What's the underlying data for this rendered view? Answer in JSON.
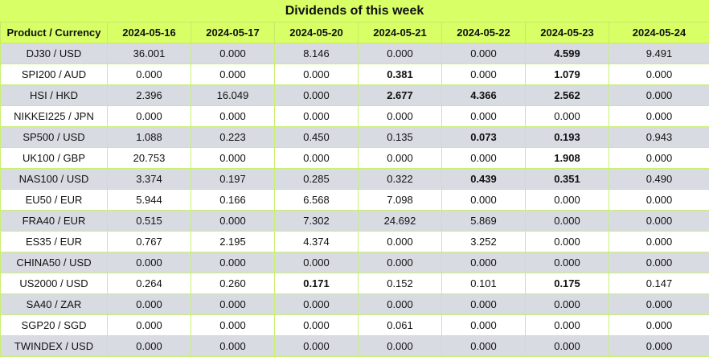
{
  "title": "Dividends of this week",
  "header": {
    "product": "Product / Currency",
    "dates": [
      "2024-05-16",
      "2024-05-17",
      "2024-05-20",
      "2024-05-21",
      "2024-05-22",
      "2024-05-23",
      "2024-05-24"
    ]
  },
  "rows": [
    {
      "product": "DJ30 / USD",
      "values": [
        "36.001",
        "0.000",
        "8.146",
        "0.000",
        "0.000",
        "4.599",
        "9.491"
      ],
      "bold": [
        false,
        false,
        false,
        false,
        false,
        true,
        false
      ]
    },
    {
      "product": "SPI200 / AUD",
      "values": [
        "0.000",
        "0.000",
        "0.000",
        "0.381",
        "0.000",
        "1.079",
        "0.000"
      ],
      "bold": [
        false,
        false,
        false,
        true,
        false,
        true,
        false
      ]
    },
    {
      "product": "HSI / HKD",
      "values": [
        "2.396",
        "16.049",
        "0.000",
        "2.677",
        "4.366",
        "2.562",
        "0.000"
      ],
      "bold": [
        false,
        false,
        false,
        true,
        true,
        true,
        false
      ]
    },
    {
      "product": "NIKKEI225 / JPN",
      "values": [
        "0.000",
        "0.000",
        "0.000",
        "0.000",
        "0.000",
        "0.000",
        "0.000"
      ],
      "bold": [
        false,
        false,
        false,
        false,
        false,
        false,
        false
      ]
    },
    {
      "product": "SP500 / USD",
      "values": [
        "1.088",
        "0.223",
        "0.450",
        "0.135",
        "0.073",
        "0.193",
        "0.943"
      ],
      "bold": [
        false,
        false,
        false,
        false,
        true,
        true,
        false
      ]
    },
    {
      "product": "UK100 / GBP",
      "values": [
        "20.753",
        "0.000",
        "0.000",
        "0.000",
        "0.000",
        "1.908",
        "0.000"
      ],
      "bold": [
        false,
        false,
        false,
        false,
        false,
        true,
        false
      ]
    },
    {
      "product": "NAS100 / USD",
      "values": [
        "3.374",
        "0.197",
        "0.285",
        "0.322",
        "0.439",
        "0.351",
        "0.490"
      ],
      "bold": [
        false,
        false,
        false,
        false,
        true,
        true,
        false
      ]
    },
    {
      "product": "EU50 / EUR",
      "values": [
        "5.944",
        "0.166",
        "6.568",
        "7.098",
        "0.000",
        "0.000",
        "0.000"
      ],
      "bold": [
        false,
        false,
        false,
        false,
        false,
        false,
        false
      ]
    },
    {
      "product": "FRA40 / EUR",
      "values": [
        "0.515",
        "0.000",
        "7.302",
        "24.692",
        "5.869",
        "0.000",
        "0.000"
      ],
      "bold": [
        false,
        false,
        false,
        false,
        false,
        false,
        false
      ]
    },
    {
      "product": "ES35 / EUR",
      "values": [
        "0.767",
        "2.195",
        "4.374",
        "0.000",
        "3.252",
        "0.000",
        "0.000"
      ],
      "bold": [
        false,
        false,
        false,
        false,
        false,
        false,
        false
      ]
    },
    {
      "product": "CHINA50 / USD",
      "values": [
        "0.000",
        "0.000",
        "0.000",
        "0.000",
        "0.000",
        "0.000",
        "0.000"
      ],
      "bold": [
        false,
        false,
        false,
        false,
        false,
        false,
        false
      ]
    },
    {
      "product": "US2000 / USD",
      "values": [
        "0.264",
        "0.260",
        "0.171",
        "0.152",
        "0.101",
        "0.175",
        "0.147"
      ],
      "bold": [
        false,
        false,
        true,
        false,
        false,
        true,
        false
      ]
    },
    {
      "product": "SA40 / ZAR",
      "values": [
        "0.000",
        "0.000",
        "0.000",
        "0.000",
        "0.000",
        "0.000",
        "0.000"
      ],
      "bold": [
        false,
        false,
        false,
        false,
        false,
        false,
        false
      ]
    },
    {
      "product": "SGP20 / SGD",
      "values": [
        "0.000",
        "0.000",
        "0.000",
        "0.061",
        "0.000",
        "0.000",
        "0.000"
      ],
      "bold": [
        false,
        false,
        false,
        false,
        false,
        false,
        false
      ]
    },
    {
      "product": "TWINDEX / USD",
      "values": [
        "0.000",
        "0.000",
        "0.000",
        "0.000",
        "0.000",
        "0.000",
        "0.000"
      ],
      "bold": [
        false,
        false,
        false,
        false,
        false,
        false,
        false
      ]
    }
  ],
  "colors": {
    "header_bg": "#d9ff66",
    "row_alt_bg": "#d8dbe2",
    "row_bg": "#ffffff",
    "border": "#c8f070"
  }
}
